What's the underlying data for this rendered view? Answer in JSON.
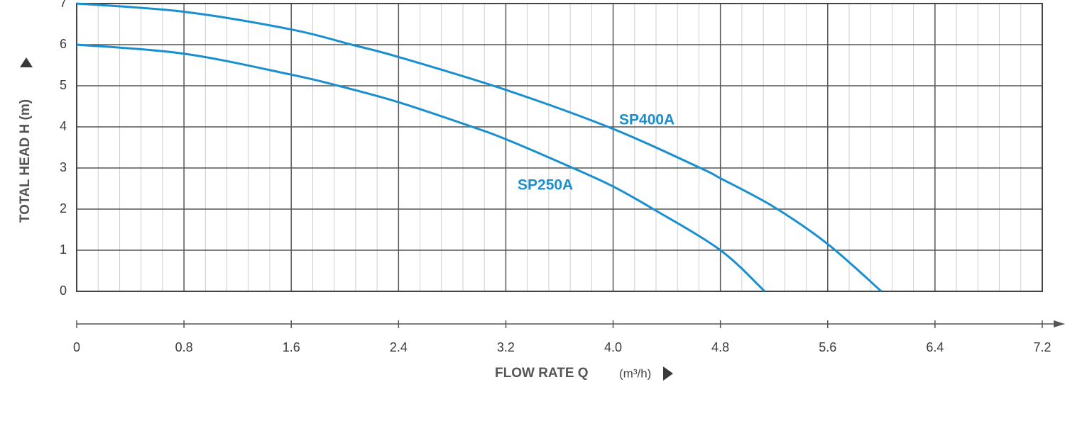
{
  "chart_data": {
    "type": "line",
    "x_label": "FLOW RATE Q",
    "x_unit": "(m³/h)",
    "y_label": "TOTAL HEAD H (m)",
    "series": [
      {
        "name": "SP400A",
        "color": "#1a8fd0",
        "x": [
          0,
          0.8,
          1.6,
          2.05,
          2.4,
          3.2,
          4.0,
          4.65,
          4.8,
          5.2,
          5.6,
          6.0
        ],
        "values": [
          7,
          6.8,
          6.37,
          6.0,
          5.7,
          4.9,
          3.95,
          3.0,
          2.75,
          2.05,
          1.15,
          0
        ]
      },
      {
        "name": "SP250A",
        "color": "#1a8fd0",
        "x": [
          0,
          0.8,
          1.6,
          1.95,
          2.4,
          2.95,
          3.2,
          3.7,
          4.0,
          4.3,
          4.8,
          5.13
        ],
        "values": [
          6,
          5.78,
          5.27,
          5.0,
          4.6,
          4.0,
          3.7,
          3.0,
          2.55,
          2.0,
          1.0,
          0
        ]
      }
    ],
    "xlim": [
      0,
      7.2
    ],
    "ylim": [
      0,
      7
    ],
    "xticks": [
      0,
      0.8,
      1.6,
      2.4,
      3.2,
      {
        "value": 4,
        "label": "4.0"
      },
      4.8,
      5.6,
      6.4,
      7.2
    ],
    "yticks": [
      0,
      1,
      2,
      3,
      4,
      5,
      6,
      7
    ],
    "grid": true,
    "minor_grid_divisions": 5
  }
}
